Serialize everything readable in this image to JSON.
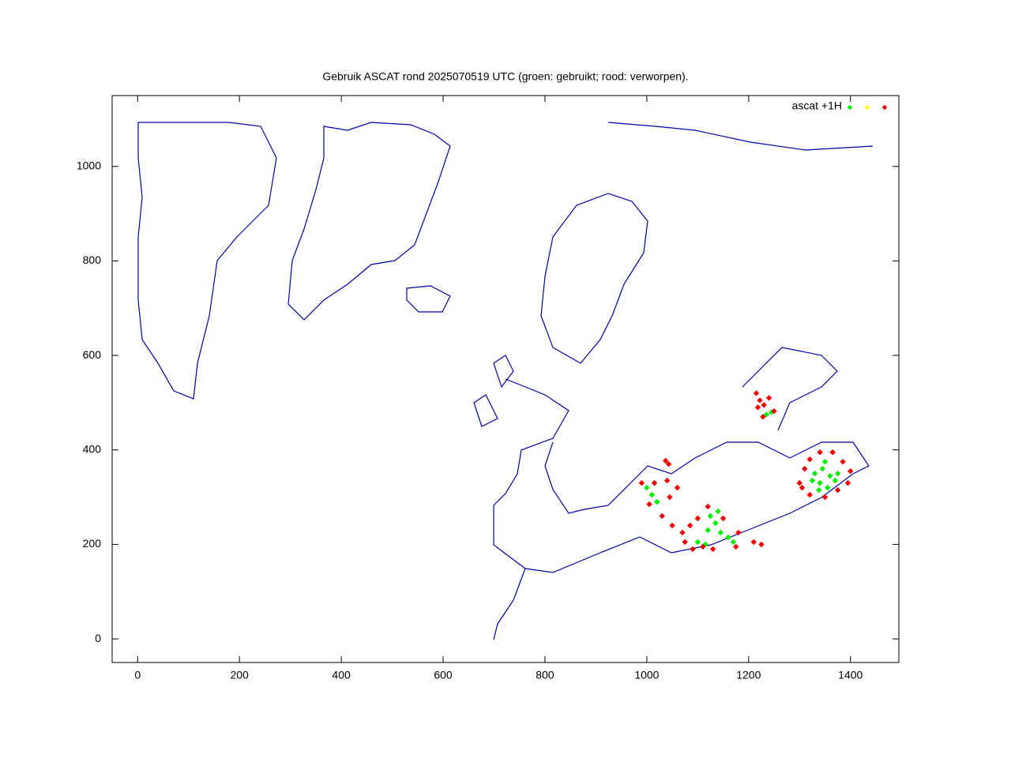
{
  "chart_data": {
    "type": "scatter",
    "title": "Gebruik ASCAT rond 2025070519 UTC (groen: gebruikt; rood: verworpen).",
    "legend_label": "ascat +1H",
    "xlim": [
      -50,
      1495
    ],
    "ylim": [
      -50,
      1150
    ],
    "xticks": [
      0,
      200,
      400,
      600,
      800,
      1000,
      1200,
      1400
    ],
    "yticks": [
      0,
      200,
      400,
      600,
      800,
      1000
    ],
    "series": [
      {
        "color": "#00ee00",
        "x": [
          1330,
          1345,
          1360,
          1340,
          1355,
          1370,
          1325,
          1350,
          1375,
          1338,
          1000,
          1010,
          1020,
          1125,
          1135,
          1120,
          1145,
          1160,
          1100,
          1115,
          1170,
          1140,
          1245,
          1235
        ],
        "y": [
          350,
          360,
          345,
          330,
          320,
          335,
          335,
          375,
          350,
          315,
          320,
          305,
          290,
          260,
          245,
          230,
          225,
          215,
          205,
          200,
          205,
          270,
          480,
          475
        ]
      },
      {
        "color": "#ffff00",
        "x": [],
        "y": []
      },
      {
        "color": "#ee0000",
        "x": [
          1215,
          1222,
          1230,
          1218,
          1240,
          1228,
          1250,
          1300,
          1310,
          1320,
          1340,
          1365,
          1385,
          1400,
          1395,
          1375,
          1350,
          1320,
          1305,
          990,
          1005,
          1030,
          1050,
          1070,
          1090,
          1110,
          1085,
          1060,
          1040,
          1015,
          1120,
          1150,
          1180,
          1175,
          1130,
          1075,
          1100,
          1045,
          1037,
          1043,
          1210,
          1225
        ],
        "y": [
          520,
          505,
          495,
          490,
          510,
          470,
          482,
          330,
          360,
          380,
          395,
          395,
          375,
          355,
          330,
          315,
          300,
          305,
          320,
          330,
          285,
          260,
          240,
          225,
          190,
          195,
          240,
          320,
          335,
          330,
          280,
          255,
          225,
          195,
          190,
          205,
          255,
          300,
          377,
          370,
          205,
          200
        ]
      }
    ]
  }
}
